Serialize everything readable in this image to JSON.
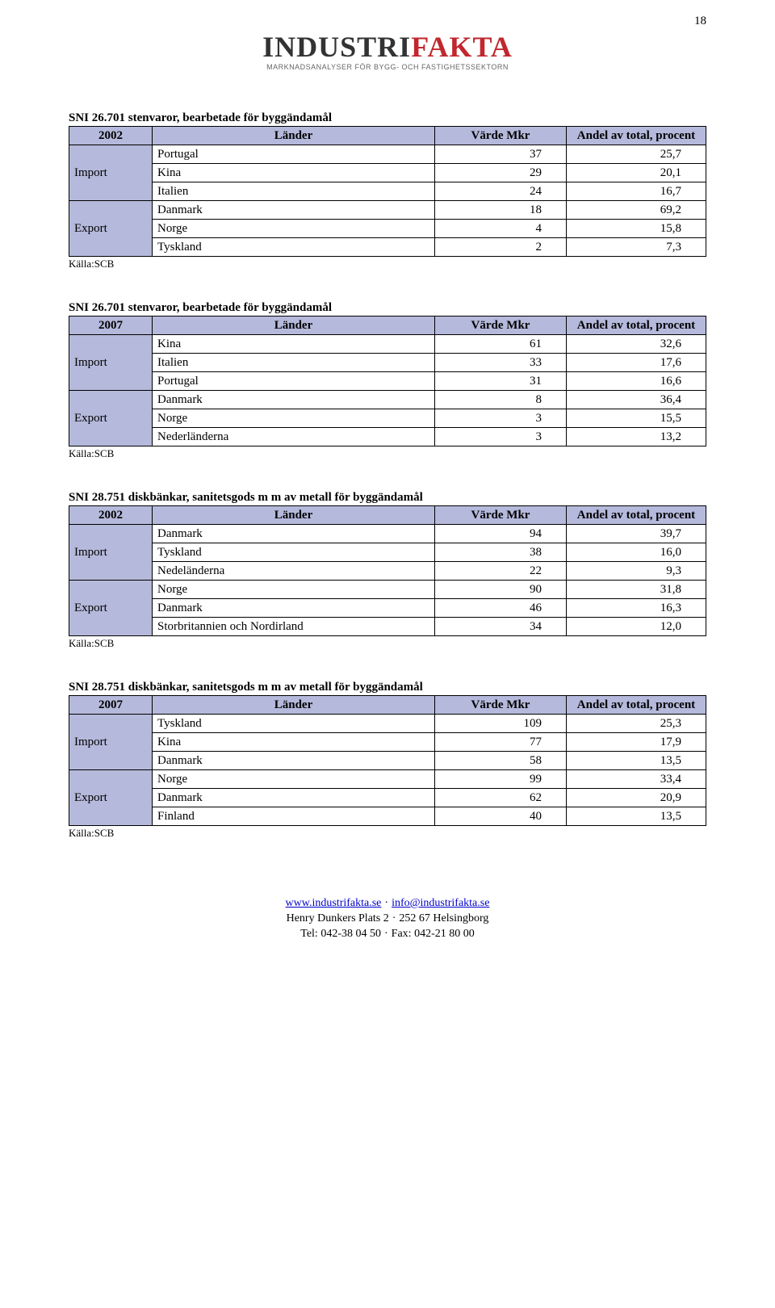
{
  "page_number": "18",
  "logo": {
    "pre": "INDUSTRI",
    "post": "FAKTA",
    "sub": "MARKNADSANALYSER FÖR BYGG- OCH FASTIGHETSSEKTORN"
  },
  "headers": {
    "year2002": "2002",
    "year2007": "2007",
    "lander": "Länder",
    "varde": "Värde Mkr",
    "andel": "Andel av total, procent",
    "import": "Import",
    "export": "Export",
    "source": "Källa:SCB"
  },
  "tables": [
    {
      "title": "SNI 26.701 stenvaror, bearbetade för byggändamål",
      "year": "2002",
      "import": [
        {
          "c": "Portugal",
          "v": "37",
          "p": "25,7"
        },
        {
          "c": "Kina",
          "v": "29",
          "p": "20,1"
        },
        {
          "c": "Italien",
          "v": "24",
          "p": "16,7"
        }
      ],
      "export": [
        {
          "c": "Danmark",
          "v": "18",
          "p": "69,2"
        },
        {
          "c": "Norge",
          "v": "4",
          "p": "15,8"
        },
        {
          "c": "Tyskland",
          "v": "2",
          "p": "7,3"
        }
      ]
    },
    {
      "title": "SNI 26.701 stenvaror, bearbetade för byggändamål",
      "year": "2007",
      "import": [
        {
          "c": "Kina",
          "v": "61",
          "p": "32,6"
        },
        {
          "c": "Italien",
          "v": "33",
          "p": "17,6"
        },
        {
          "c": "Portugal",
          "v": "31",
          "p": "16,6"
        }
      ],
      "export": [
        {
          "c": "Danmark",
          "v": "8",
          "p": "36,4"
        },
        {
          "c": "Norge",
          "v": "3",
          "p": "15,5"
        },
        {
          "c": "Nederländerna",
          "v": "3",
          "p": "13,2"
        }
      ]
    },
    {
      "title": "SNI 28.751 diskbänkar, sanitetsgods m m av metall för byggändamål",
      "year": "2002",
      "import": [
        {
          "c": "Danmark",
          "v": "94",
          "p": "39,7"
        },
        {
          "c": "Tyskland",
          "v": "38",
          "p": "16,0"
        },
        {
          "c": "Nedeländerna",
          "v": "22",
          "p": "9,3"
        }
      ],
      "export": [
        {
          "c": "Norge",
          "v": "90",
          "p": "31,8"
        },
        {
          "c": "Danmark",
          "v": "46",
          "p": "16,3"
        },
        {
          "c": "Storbritannien och Nordirland",
          "v": "34",
          "p": "12,0"
        }
      ]
    },
    {
      "title": "SNI 28.751 diskbänkar, sanitetsgods m m av metall för byggändamål",
      "year": "2007",
      "import": [
        {
          "c": "Tyskland",
          "v": "109",
          "p": "25,3"
        },
        {
          "c": "Kina",
          "v": "77",
          "p": "17,9"
        },
        {
          "c": "Danmark",
          "v": "58",
          "p": "13,5"
        }
      ],
      "export": [
        {
          "c": "Norge",
          "v": "99",
          "p": "33,4"
        },
        {
          "c": "Danmark",
          "v": "62",
          "p": "20,9"
        },
        {
          "c": "Finland",
          "v": "40",
          "p": "13,5"
        }
      ]
    }
  ],
  "footer": {
    "web": "www.industrifakta.se",
    "email": "info@industrifakta.se",
    "addr": "Henry Dunkers Plats 2",
    "postal": "252 67 Helsingborg",
    "tel_label": "Tel:",
    "tel": "042-38 04 50",
    "fax_label": "Fax:",
    "fax": "042-21 80 00"
  }
}
